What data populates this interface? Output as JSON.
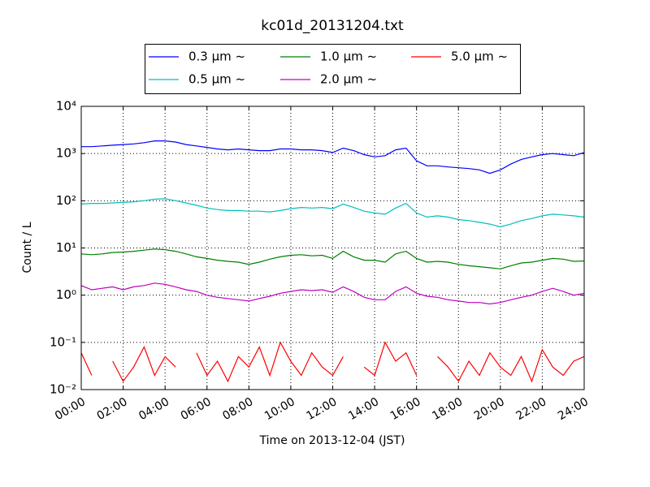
{
  "chart_data": {
    "type": "line",
    "title": "kc01d_20131204.txt",
    "xlabel": "Time on 2013-12-04 (JST)",
    "ylabel": "Count / L",
    "log_y": true,
    "grid": true,
    "legend": "upper center",
    "legend_columns": 3,
    "xlim": [
      0,
      24
    ],
    "ylim": [
      0.01,
      10000
    ],
    "xticks": [
      {
        "value": 0,
        "label": "00:00"
      },
      {
        "value": 2,
        "label": "02:00"
      },
      {
        "value": 4,
        "label": "04:00"
      },
      {
        "value": 6,
        "label": "06:00"
      },
      {
        "value": 8,
        "label": "08:00"
      },
      {
        "value": 10,
        "label": "10:00"
      },
      {
        "value": 12,
        "label": "12:00"
      },
      {
        "value": 14,
        "label": "14:00"
      },
      {
        "value": 16,
        "label": "16:00"
      },
      {
        "value": 18,
        "label": "18:00"
      },
      {
        "value": 20,
        "label": "20:00"
      },
      {
        "value": 22,
        "label": "22:00"
      },
      {
        "value": 24,
        "label": "24:00"
      }
    ],
    "yticks": [
      {
        "value": 0.01,
        "label": "10⁻²"
      },
      {
        "value": 0.1,
        "label": "10⁻¹"
      },
      {
        "value": 1,
        "label": "10⁰"
      },
      {
        "value": 10,
        "label": "10¹"
      },
      {
        "value": 100,
        "label": "10²"
      },
      {
        "value": 1000,
        "label": "10³"
      },
      {
        "value": 10000,
        "label": "10⁴"
      }
    ],
    "x": [
      0,
      0.5,
      1,
      1.5,
      2,
      2.5,
      3,
      3.5,
      4,
      4.5,
      5,
      5.5,
      6,
      6.5,
      7,
      7.5,
      8,
      8.5,
      9,
      9.5,
      10,
      10.5,
      11,
      11.5,
      12,
      12.5,
      13,
      13.5,
      14,
      14.5,
      15,
      15.5,
      16,
      16.5,
      17,
      17.5,
      18,
      18.5,
      19,
      19.5,
      20,
      20.5,
      21,
      21.5,
      22,
      22.5,
      23,
      23.5,
      24
    ],
    "series": [
      {
        "name": "0.3 μm ~",
        "color": "#0000ff",
        "values": [
          1400,
          1400,
          1450,
          1500,
          1550,
          1600,
          1700,
          1850,
          1850,
          1750,
          1550,
          1450,
          1350,
          1250,
          1200,
          1250,
          1200,
          1150,
          1150,
          1250,
          1250,
          1200,
          1200,
          1150,
          1050,
          1300,
          1150,
          950,
          850,
          900,
          1200,
          1300,
          700,
          550,
          550,
          520,
          500,
          480,
          450,
          380,
          450,
          600,
          750,
          850,
          950,
          1000,
          950,
          900,
          1050
        ]
      },
      {
        "name": "0.5 μm ~",
        "color": "#00bfbf",
        "values": [
          85,
          88,
          88,
          90,
          92,
          95,
          100,
          108,
          110,
          100,
          90,
          80,
          70,
          65,
          62,
          62,
          60,
          60,
          58,
          62,
          68,
          72,
          70,
          72,
          68,
          85,
          72,
          60,
          55,
          52,
          70,
          88,
          55,
          45,
          48,
          45,
          40,
          38,
          35,
          32,
          28,
          32,
          38,
          42,
          48,
          52,
          50,
          48,
          45
        ]
      },
      {
        "name": "1.0 μm ~",
        "color": "#008000",
        "values": [
          7.5,
          7.2,
          7.5,
          8,
          8.2,
          8.5,
          9,
          9.5,
          9.2,
          8.5,
          7.5,
          6.5,
          6,
          5.5,
          5.2,
          5,
          4.5,
          5,
          5.8,
          6.5,
          7,
          7.2,
          6.8,
          7,
          6,
          8.5,
          6.5,
          5.5,
          5.5,
          5,
          7.5,
          8.5,
          6,
          5,
          5.2,
          5,
          4.5,
          4.2,
          4,
          3.8,
          3.6,
          4.2,
          4.8,
          5,
          5.5,
          6,
          5.8,
          5.2,
          5.3
        ]
      },
      {
        "name": "2.0 μm ~",
        "color": "#bf00bf",
        "values": [
          1.6,
          1.3,
          1.4,
          1.5,
          1.3,
          1.5,
          1.6,
          1.8,
          1.7,
          1.5,
          1.3,
          1.2,
          1,
          0.9,
          0.85,
          0.8,
          0.75,
          0.85,
          0.95,
          1.1,
          1.2,
          1.3,
          1.25,
          1.3,
          1.15,
          1.5,
          1.2,
          0.9,
          0.8,
          0.8,
          1.2,
          1.5,
          1.1,
          0.95,
          0.9,
          0.8,
          0.75,
          0.7,
          0.7,
          0.65,
          0.7,
          0.8,
          0.9,
          1,
          1.2,
          1.4,
          1.2,
          1,
          1.1
        ]
      },
      {
        "name": "5.0 μm ~",
        "color": "#ff0000",
        "values": [
          0.06,
          0.02,
          null,
          0.04,
          0.015,
          0.03,
          0.08,
          0.02,
          0.05,
          0.03,
          null,
          0.06,
          0.02,
          0.04,
          0.015,
          0.05,
          0.03,
          0.08,
          0.02,
          0.1,
          0.04,
          0.02,
          0.06,
          0.03,
          0.02,
          0.05,
          null,
          0.03,
          0.02,
          0.1,
          0.04,
          0.06,
          0.02,
          null,
          0.05,
          0.03,
          0.015,
          0.04,
          0.02,
          0.06,
          0.03,
          0.02,
          0.05,
          0.015,
          0.07,
          0.03,
          0.02,
          0.04,
          0.05
        ]
      }
    ]
  }
}
